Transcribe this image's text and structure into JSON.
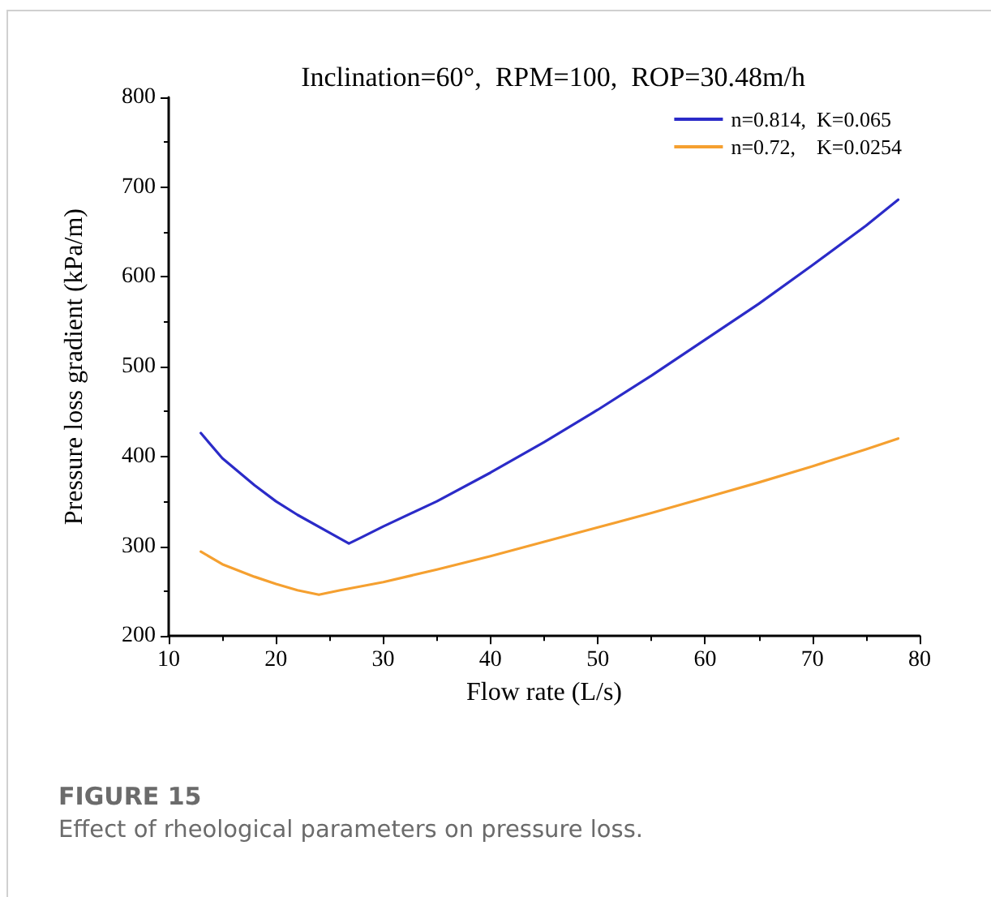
{
  "chart_data": {
    "type": "line",
    "title": "Inclination=60°,  RPM=100,  ROP=30.48m/h",
    "xlabel": "Flow rate (L/s)",
    "ylabel": "Pressure loss gradient (kPa/m)",
    "annotations": [
      "FIGURE 15",
      "Effect of rheological parameters on pressure loss."
    ],
    "xlim": [
      10,
      80
    ],
    "xticks": [
      10,
      20,
      30,
      40,
      50,
      60,
      70,
      80
    ],
    "ylim": [
      200,
      800
    ],
    "yticks": [
      200,
      300,
      400,
      500,
      600,
      700,
      800
    ],
    "grid": false,
    "legend": "top right",
    "marker": "none",
    "line_style": "solid",
    "series": [
      {
        "name": "n=0.814,  K=0.065",
        "color": "#2b2bc8",
        "x": [
          13,
          15,
          18,
          20,
          22,
          25,
          26.8,
          28,
          30,
          35,
          40,
          45,
          50,
          55,
          60,
          65,
          70,
          75,
          78
        ],
        "values": [
          426,
          398,
          368,
          350,
          335,
          315,
          303,
          310,
          322,
          350,
          382,
          416,
          452,
          490,
          530,
          570,
          613,
          657,
          686
        ]
      },
      {
        "name": "n=0.72,    K=0.0254",
        "color": "#f5a030",
        "x": [
          13,
          15,
          18,
          20,
          22,
          24,
          26,
          30,
          35,
          40,
          45,
          50,
          55,
          60,
          65,
          70,
          75,
          78
        ],
        "values": [
          294,
          280,
          266,
          258,
          251,
          246,
          251,
          260,
          274,
          289,
          305,
          321,
          337,
          354,
          371,
          389,
          408,
          420
        ]
      }
    ]
  }
}
